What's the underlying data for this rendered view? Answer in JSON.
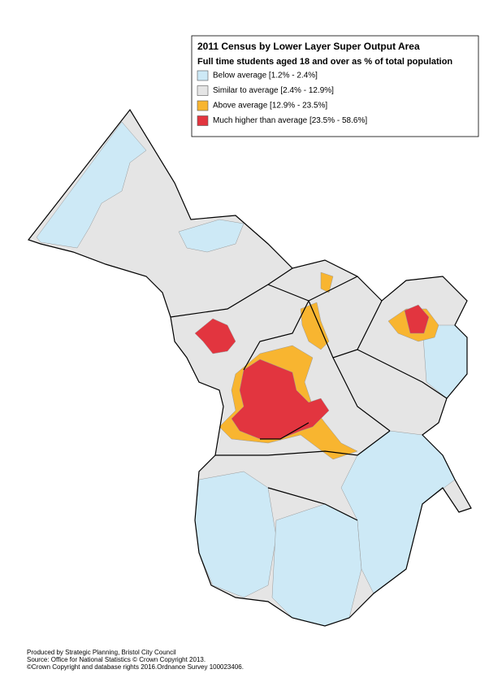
{
  "header": {
    "title": "2011 Census by Lower Layer Super Output Area",
    "subtitle": "Full time students aged 18 and over as % of total population"
  },
  "legend": [
    {
      "label": "Below average [1.2% - 2.4%]",
      "color": "#cde9f6"
    },
    {
      "label": "Similar to average [2.4% - 12.9%]",
      "color": "#e5e5e5"
    },
    {
      "label": "Above average [12.9% - 23.5%]",
      "color": "#f8b530"
    },
    {
      "label": "Much higher than average [23.5% - 58.6%]",
      "color": "#e2353f"
    }
  ],
  "footer": [
    "Produced by Strategic Planning, Bristol City Council",
    "Source: Office for National Statistics © Crown Copyright 2013.",
    "©Crown Copyright and database rights 2016.Ordnance Survey 100023406."
  ]
}
